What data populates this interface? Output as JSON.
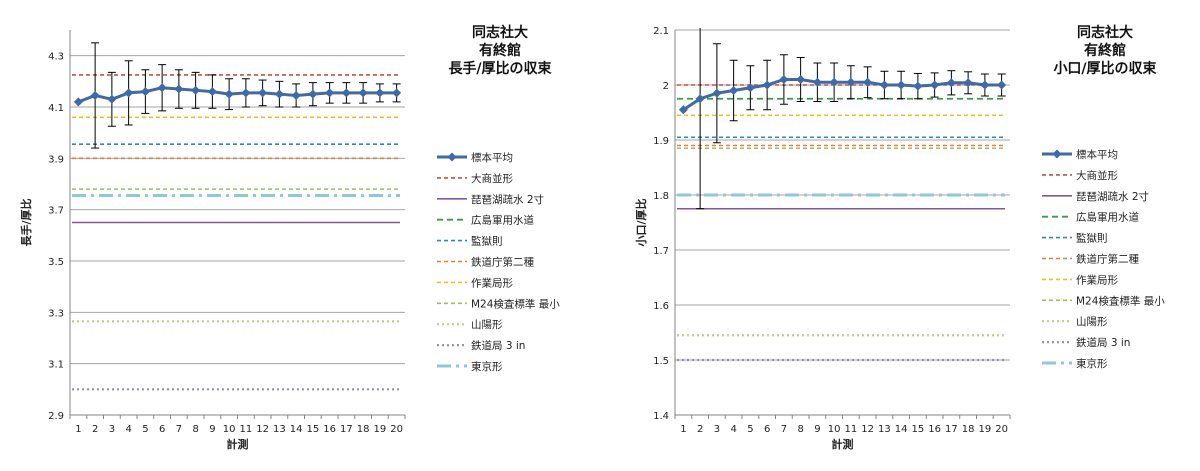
{
  "chart_data": [
    {
      "type": "line",
      "title": [
        "同志社大",
        "有終館",
        "長手/厚比の収束"
      ],
      "xlabel": "計測",
      "ylabel": "長手/厚比",
      "x": [
        1,
        2,
        3,
        4,
        5,
        6,
        7,
        8,
        9,
        10,
        11,
        12,
        13,
        14,
        15,
        16,
        17,
        18,
        19,
        20
      ],
      "ylim": [
        2.9,
        4.4
      ],
      "yticks": [
        "2.9",
        "3.1",
        "3.3",
        "3.5",
        "3.7",
        "3.9",
        "4.1",
        "4.3"
      ],
      "grid": true,
      "legend_position": "right",
      "series": [
        {
          "name": "標本平均",
          "color": "#3e6aa8",
          "values": [
            4.12,
            4.145,
            4.13,
            4.155,
            4.16,
            4.175,
            4.17,
            4.165,
            4.16,
            4.15,
            4.155,
            4.155,
            4.15,
            4.145,
            4.15,
            4.155,
            4.155,
            4.155,
            4.155,
            4.155
          ],
          "error": [
            0.0,
            0.205,
            0.105,
            0.125,
            0.085,
            0.09,
            0.075,
            0.07,
            0.065,
            0.06,
            0.055,
            0.05,
            0.05,
            0.045,
            0.045,
            0.04,
            0.04,
            0.04,
            0.035,
            0.035
          ]
        },
        {
          "name": "大商並形",
          "color": "#c0504d",
          "value": 4.225
        },
        {
          "name": "琵琶湖疏水 2寸",
          "color": "#7b5a9e",
          "value": 3.65
        },
        {
          "name": "広島軍用水道",
          "color": "#3a9a48",
          "value": null
        },
        {
          "name": "監獄則",
          "color": "#2f8bb5",
          "value": 3.955
        },
        {
          "name": "鉄道庁第二種",
          "color": "#e67e35",
          "value": 3.9
        },
        {
          "name": "作業局形",
          "color": "#f0c020",
          "value": 4.06
        },
        {
          "name": "M24検査標準 最小",
          "color": "#9bc25a",
          "value": 3.78
        },
        {
          "name": "山陽形",
          "color": "#c4cc8a",
          "value": 3.265
        },
        {
          "name": "鉄道局 3 in",
          "color": "#9a8ac8",
          "value": 3.0
        },
        {
          "name": "東京形",
          "color": "#8fc8d8",
          "value": 3.755
        }
      ]
    },
    {
      "type": "line",
      "title": [
        "同志社大",
        "有終館",
        "小口/厚比の収束"
      ],
      "xlabel": "計測",
      "ylabel": "小口/厚比",
      "x": [
        1,
        2,
        3,
        4,
        5,
        6,
        7,
        8,
        9,
        10,
        11,
        12,
        13,
        14,
        15,
        16,
        17,
        18,
        19,
        20
      ],
      "ylim": [
        1.4,
        2.1
      ],
      "yticks": [
        "1.4",
        "1.5",
        "1.6",
        "1.7",
        "1.8",
        "1.9",
        "2",
        "2.1"
      ],
      "grid": true,
      "legend_position": "right",
      "series": [
        {
          "name": "標本平均",
          "color": "#3e6aa8",
          "values": [
            1.955,
            1.975,
            1.985,
            1.99,
            1.995,
            2.0,
            2.01,
            2.01,
            2.005,
            2.005,
            2.005,
            2.005,
            2.0,
            2.0,
            1.998,
            2.0,
            2.004,
            2.004,
            2.0,
            2.0
          ],
          "error": [
            0.0,
            0.2,
            0.09,
            0.055,
            0.04,
            0.045,
            0.045,
            0.04,
            0.035,
            0.035,
            0.03,
            0.028,
            0.025,
            0.025,
            0.023,
            0.022,
            0.022,
            0.02,
            0.02,
            0.02
          ]
        },
        {
          "name": "大商並形",
          "color": "#c0504d",
          "value": 2.0
        },
        {
          "name": "琵琶湖疏水 2寸",
          "color": "#7b5a9e",
          "value": 1.775
        },
        {
          "name": "広島軍用水道",
          "color": "#3a9a48",
          "value": 1.975
        },
        {
          "name": "監獄則",
          "color": "#2f8bb5",
          "value": 1.905
        },
        {
          "name": "鉄道庁第二種",
          "color": "#e67e35",
          "value": 1.89
        },
        {
          "name": "作業局形",
          "color": "#f0c020",
          "value": 1.945
        },
        {
          "name": "M24検査標準 最小",
          "color": "#9bc25a",
          "value": 1.885
        },
        {
          "name": "山陽形",
          "color": "#c4cc8a",
          "value": 1.545
        },
        {
          "name": "鉄道局 3 in",
          "color": "#9a8ac8",
          "value": 1.5
        },
        {
          "name": "東京形",
          "color": "#8fc8d8",
          "value": 1.8
        }
      ]
    }
  ]
}
